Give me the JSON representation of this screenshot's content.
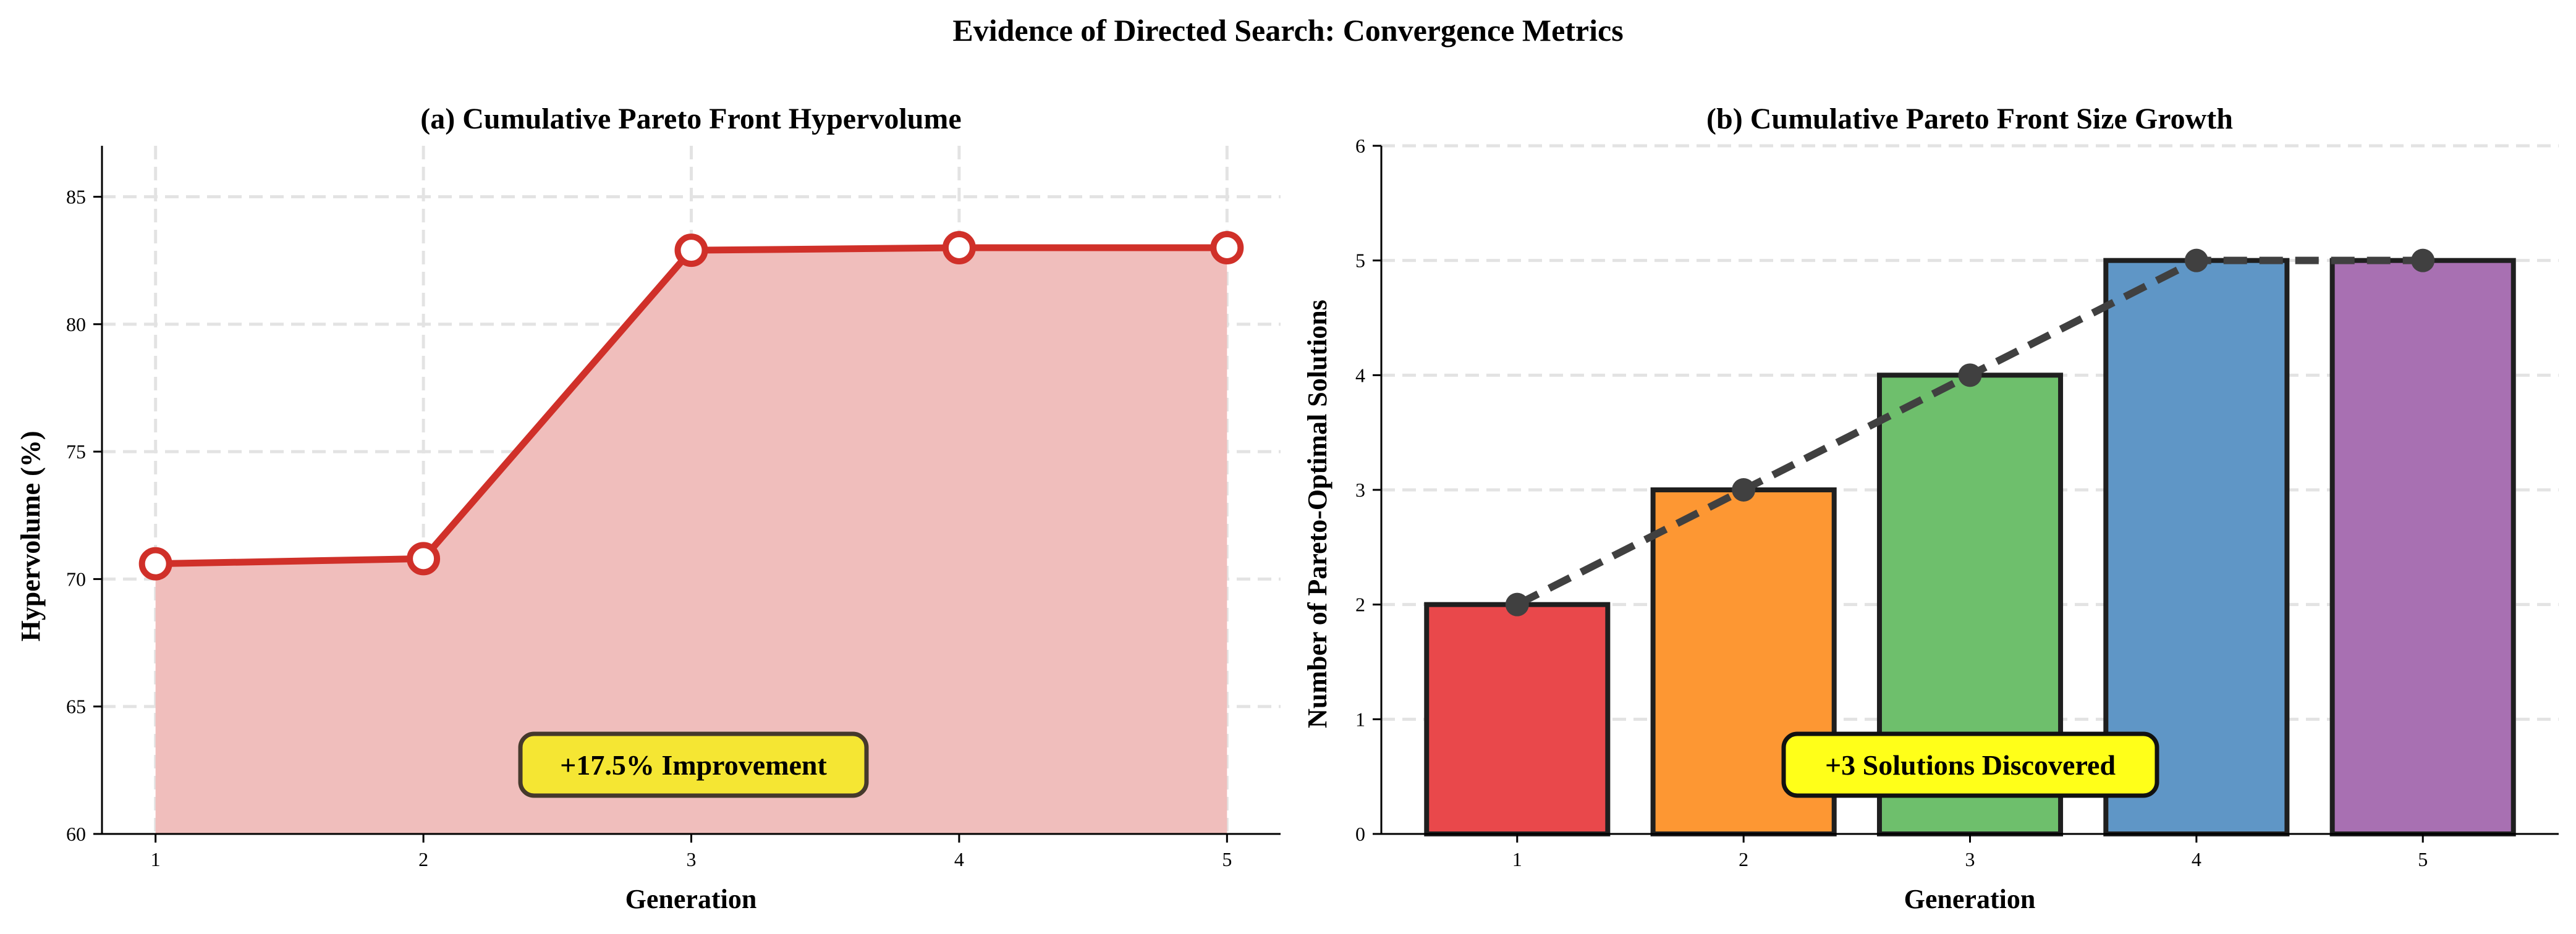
{
  "page": {
    "title": "Evidence of Directed Search: Convergence Metrics"
  },
  "chart_data": [
    {
      "type": "area",
      "title": "(a) Cumulative Pareto Front Hypervolume",
      "xlabel": "Generation",
      "ylabel": "Hypervolume (%)",
      "x": [
        1,
        2,
        3,
        4,
        5
      ],
      "xticks": [
        "1",
        "2",
        "3",
        "4",
        "5"
      ],
      "values": [
        70.6,
        70.8,
        82.9,
        83.0,
        83.0
      ],
      "xlim": [
        0.8,
        5.2
      ],
      "ylim": [
        60,
        87
      ],
      "yticks": [
        60,
        65,
        70,
        75,
        80,
        85
      ],
      "grid": true,
      "line_color": "#d03029",
      "fill_color": "#f0bebc",
      "annotation": "+17.5% Improvement",
      "annotation_box_color": "#f5e633"
    },
    {
      "type": "bar",
      "title": "(b) Cumulative Pareto Front Size Growth",
      "xlabel": "Generation",
      "ylabel": "Number of Pareto-Optimal Solutions",
      "categories": [
        "1",
        "2",
        "3",
        "4",
        "5"
      ],
      "values": [
        2,
        3,
        4,
        5,
        5
      ],
      "bar_colors": [
        "#e9484b",
        "#fd9733",
        "#6ebf6c",
        "#5f96c6",
        "#a870b2"
      ],
      "trend_values": [
        2,
        3,
        4,
        5,
        5
      ],
      "trend_color": "#404040",
      "ylim": [
        0,
        6
      ],
      "yticks": [
        0,
        1,
        2,
        3,
        4,
        5,
        6
      ],
      "grid": true,
      "annotation": "+3 Solutions Discovered",
      "annotation_box_color": "#ffff19"
    }
  ]
}
